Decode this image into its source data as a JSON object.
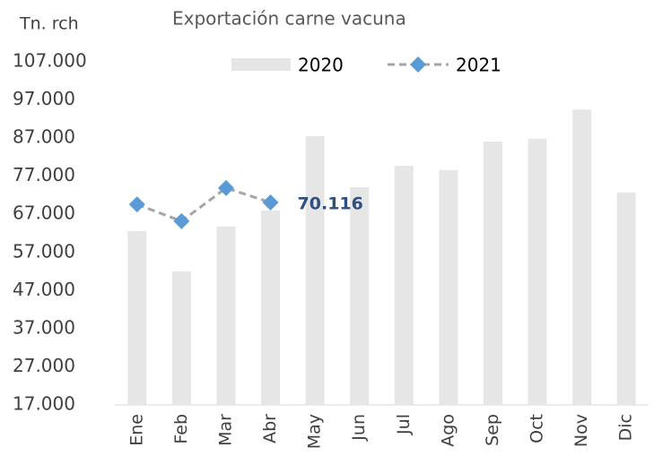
{
  "chart_data": {
    "type": "bar_line",
    "title": "Exportación carne vacuna",
    "y_label": "Tn. rch",
    "categories": [
      "Ene",
      "Feb",
      "Mar",
      "Abr",
      "May",
      "Jun",
      "Jul",
      "Ago",
      "Sep",
      "Oct",
      "Nov",
      "Dic"
    ],
    "series": [
      {
        "name": "2020",
        "type": "bar",
        "color": "#e7e6e6",
        "values": [
          62600,
          52000,
          63800,
          68000,
          87500,
          74100,
          79700,
          78600,
          86100,
          86800,
          94500,
          72700
        ]
      },
      {
        "name": "2021",
        "type": "line",
        "color": "#a5a5a5",
        "marker_color": "#5b9bd5",
        "values": [
          69600,
          65200,
          73900,
          70116,
          null,
          null,
          null,
          null,
          null,
          null,
          null,
          null
        ],
        "value_labels": [
          null,
          null,
          null,
          "70.116",
          null,
          null,
          null,
          null,
          null,
          null,
          null,
          null
        ]
      }
    ],
    "ylim": [
      17000,
      107000
    ],
    "yticks": [
      {
        "value": 17000,
        "label": "17.000"
      },
      {
        "value": 27000,
        "label": "27.000"
      },
      {
        "value": 37000,
        "label": "37.000"
      },
      {
        "value": 47000,
        "label": "47.000"
      },
      {
        "value": 57000,
        "label": "57.000"
      },
      {
        "value": 67000,
        "label": "67.000"
      },
      {
        "value": 77000,
        "label": "77.000"
      },
      {
        "value": 87000,
        "label": "87.000"
      },
      {
        "value": 97000,
        "label": "97.000"
      },
      {
        "value": 107000,
        "label": "107.000"
      }
    ],
    "grid": false
  }
}
